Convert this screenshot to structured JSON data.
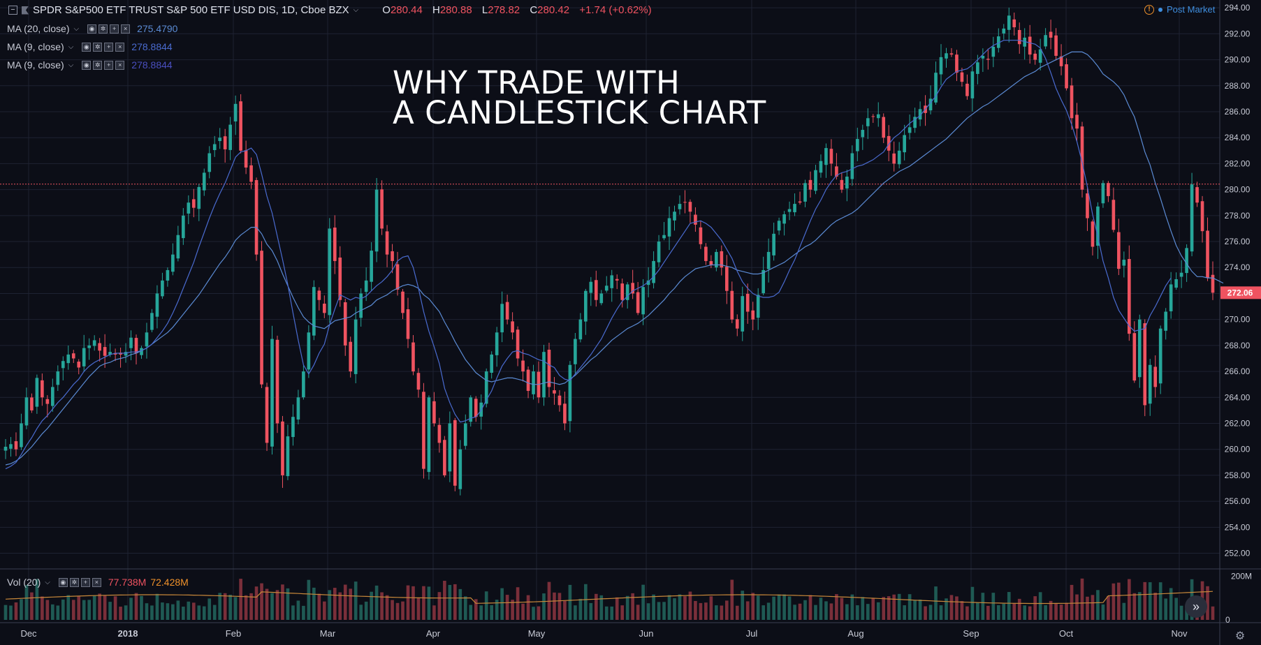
{
  "header": {
    "symbol_title": "SPDR S&P500 ETF TRUST S&P 500 ETF USD DIS, 1D, Cboe BZX",
    "o_label": "O",
    "o_value": "280.44",
    "h_label": "H",
    "h_value": "280.88",
    "l_label": "L",
    "l_value": "278.82",
    "c_label": "C",
    "c_value": "280.42",
    "change": "+1.74 (+0.62%)",
    "post_market": "Post Market",
    "warn_glyph": "!"
  },
  "indicators": [
    {
      "label": "MA (20, close)",
      "value": "275.4790",
      "color": "#5b8bd4"
    },
    {
      "label": "MA (9, close)",
      "value": "278.8844",
      "color": "#4a6bd0"
    },
    {
      "label": "MA (9, close)",
      "value": "278.8844",
      "color": "#4a4fc0"
    }
  ],
  "headline": {
    "line1": "WHY TRADE WITH",
    "line2": "A CANDLESTICK CHART"
  },
  "volume": {
    "label": "Vol (20)",
    "value1": "77.738M",
    "value2": "72.428M",
    "value1_color": "#ef5360",
    "value2_color": "#f0922b"
  },
  "icons": {
    "scroll": "double-chevron-right-icon",
    "settings": "gear-icon"
  },
  "colors": {
    "up": "#26a69a",
    "down": "#ef5360",
    "background": "#0c0e17",
    "grid": "#1e2232",
    "price_line": "#ef5360"
  },
  "chart_data": {
    "type": "candlestick",
    "y_axis_ticks": [
      "294.00",
      "292.00",
      "290.00",
      "288.00",
      "286.00",
      "284.00",
      "282.00",
      "280.00",
      "278.00",
      "276.00",
      "274.00",
      "272.00",
      "270.00",
      "268.00",
      "266.00",
      "264.00",
      "262.00",
      "260.00",
      "258.00",
      "256.00",
      "254.00",
      "252.00"
    ],
    "ylim": [
      250.9,
      294.6
    ],
    "current_price_label": "272.06",
    "current_price": 272.06,
    "last_close_line": 280.42,
    "x_axis_labels": [
      "Dec",
      "2018",
      "Feb",
      "Mar",
      "Apr",
      "May",
      "Jun",
      "Jul",
      "Aug",
      "Sep",
      "Oct",
      "Nov"
    ],
    "volume_axis_ticks": [
      "200M",
      "0"
    ],
    "volume_max": 230,
    "closes": [
      260.2,
      260.4,
      260.0,
      262.0,
      264.0,
      263.0,
      265.5,
      264.0,
      263.5,
      264.8,
      266.0,
      266.8,
      267.3,
      267.0,
      266.3,
      267.8,
      268.0,
      268.4,
      267.6,
      267.2,
      267.5,
      267.3,
      267.3,
      267.5,
      268.6,
      267.4,
      267.8,
      269.0,
      270.5,
      272.0,
      273.0,
      273.8,
      275.0,
      276.5,
      278.0,
      279.0,
      278.6,
      280.2,
      281.3,
      282.8,
      283.5,
      284.0,
      283.1,
      285.0,
      286.6,
      283.0,
      281.7,
      280.6,
      275.0,
      265.0,
      260.5,
      268.5,
      262.0,
      258.0,
      261.0,
      262.5,
      264.0,
      266.0,
      269.0,
      272.5,
      271.5,
      270.5,
      277.0,
      274.5,
      271.5,
      268.0,
      266.0,
      270.0,
      272.0,
      273.0,
      275.3,
      280.0,
      277.0,
      275.0,
      274.5,
      272.3,
      270.5,
      268.5,
      266.0,
      264.6,
      258.5,
      264.0,
      262.0,
      260.5,
      258.0,
      262.0,
      257.2,
      260.0,
      262.0,
      264.0,
      262.5,
      263.6,
      266.0,
      267.3,
      269.0,
      271.2,
      270.0,
      269.0,
      267.0,
      266.0,
      264.5,
      266.0,
      264.0,
      267.5,
      264.8,
      264.3,
      263.4,
      262.0,
      266.5,
      268.5,
      270.0,
      272.2,
      272.9,
      271.5,
      272.0,
      272.6,
      273.4,
      273.0,
      271.5,
      272.7,
      272.0,
      270.5,
      272.5,
      273.0,
      274.5,
      276.0,
      276.5,
      277.8,
      278.3,
      278.9,
      279.0,
      278.3,
      277.3,
      275.8,
      274.5,
      274.2,
      275.2,
      274.0,
      272.2,
      270.0,
      269.3,
      271.8,
      270.6,
      270.0,
      271.9,
      273.8,
      275.2,
      276.6,
      277.6,
      278.1,
      278.5,
      278.9,
      279.0,
      280.5,
      280.0,
      281.5,
      282.2,
      283.2,
      282.0,
      281.0,
      280.0,
      281.0,
      282.8,
      283.9,
      284.6,
      285.5,
      285.6,
      285.8,
      284.0,
      283.0,
      282.0,
      283.0,
      284.2,
      284.8,
      285.6,
      286.2,
      285.9,
      287.0,
      289.0,
      290.2,
      290.5,
      290.4,
      289.0,
      288.3,
      287.2,
      289.1,
      289.8,
      290.3,
      290.0,
      291.0,
      291.8,
      292.4,
      293.4,
      292.5,
      291.2,
      291.7,
      290.4,
      290.0,
      290.8,
      291.9,
      291.7,
      290.3,
      289.5,
      287.8,
      285.5,
      284.7,
      280.0,
      277.8,
      275.6,
      278.7,
      280.5,
      279.5,
      276.9,
      273.9,
      274.6,
      268.9,
      265.3,
      270.0,
      263.4,
      266.5,
      264.8,
      269.3,
      270.6,
      272.7,
      273.1,
      273.6,
      275.5,
      280.4,
      279.0,
      276.8,
      273.2,
      272.06
    ],
    "ma20": [
      258.8,
      258.9,
      259.1,
      259.4,
      259.8,
      260.2,
      260.7,
      261.2,
      261.6,
      262.1,
      262.6,
      263.1,
      263.6,
      264.1,
      264.6,
      265.1,
      265.6,
      266.0,
      266.4,
      266.6,
      266.7,
      266.9,
      267.0,
      267.1,
      267.3,
      267.4,
      267.6,
      267.8,
      268.1,
      268.4,
      268.7,
      269.0,
      269.4,
      269.9,
      270.4,
      270.9,
      271.4,
      271.9,
      272.5,
      273.1,
      273.7,
      274.3,
      274.8,
      275.4,
      276.1,
      276.5,
      276.8,
      277.1,
      277.1,
      276.6,
      275.8,
      275.3,
      274.5,
      273.5,
      272.6,
      271.7,
      270.9,
      270.2,
      269.8,
      269.5,
      269.4,
      269.3,
      269.6,
      269.9,
      270.0,
      270.1,
      270.2,
      270.5,
      270.7,
      270.9,
      271.1,
      271.5,
      271.7,
      271.9,
      272.2,
      272.4,
      272.6,
      272.7,
      272.6,
      272.4,
      271.9,
      271.6,
      271.1,
      270.6,
      269.8,
      269.1,
      268.3,
      267.6,
      266.9,
      266.4,
      265.9,
      265.6,
      265.3,
      265.2,
      265.3,
      265.4,
      265.5,
      265.5,
      265.4,
      265.3,
      265.1,
      265.0,
      265.0,
      265.1,
      265.2,
      265.1,
      265.0,
      265.1,
      265.4,
      265.7,
      266.1,
      266.5,
      266.9,
      267.2,
      267.6,
      268.0,
      268.4,
      268.7,
      269.0,
      269.3,
      269.5,
      269.7,
      270.0,
      270.3,
      270.7,
      271.1,
      271.5,
      272.0,
      272.4,
      272.9,
      273.3,
      273.6,
      273.9,
      274.0,
      274.1,
      274.2,
      274.2,
      274.2,
      274.1,
      274.0,
      273.8,
      273.7,
      273.6,
      273.5,
      273.5,
      273.6,
      273.8,
      274.0,
      274.2,
      274.4,
      274.7,
      275.0,
      275.3,
      275.6,
      275.8,
      276.1,
      276.5,
      276.9,
      277.3,
      277.6,
      277.8,
      278.0,
      278.2,
      278.5,
      278.9,
      279.3,
      279.7,
      280.1,
      280.5,
      280.8,
      281.1,
      281.4,
      281.6,
      281.8,
      282.1,
      282.4,
      282.7,
      283.0,
      283.3,
      283.6,
      283.9,
      284.3,
      284.7,
      285.1,
      285.5,
      285.8,
      286.1,
      286.4,
      286.6,
      286.9,
      287.2,
      287.5,
      287.8,
      288.1,
      288.4,
      288.7,
      288.9,
      289.1,
      289.4,
      289.6,
      289.8,
      290.0,
      290.2,
      290.4,
      290.6,
      290.6,
      290.6,
      290.4,
      290.0,
      289.5,
      288.9,
      288.6,
      288.3,
      287.9,
      287.3,
      286.4,
      285.6,
      284.3,
      282.9,
      281.9,
      280.5,
      279.3,
      278.0,
      276.8,
      275.7,
      274.9,
      274.3,
      273.7,
      273.3,
      273.3,
      273.2,
      273.2,
      273.0,
      272.8
    ],
    "ma9": [
      258.5,
      258.7,
      259.0,
      259.6,
      260.3,
      260.9,
      261.6,
      262.2,
      262.6,
      263.1,
      263.6,
      264.0,
      264.5,
      265.0,
      265.4,
      266.0,
      266.4,
      266.7,
      266.9,
      267.1,
      267.3,
      267.4,
      267.4,
      267.4,
      267.5,
      267.5,
      267.6,
      267.8,
      268.1,
      268.6,
      269.1,
      269.7,
      270.5,
      271.4,
      272.4,
      273.4,
      274.4,
      275.6,
      276.7,
      277.8,
      278.8,
      279.7,
      280.5,
      281.5,
      282.5,
      282.9,
      283.0,
      283.2,
      282.7,
      281.2,
      279.5,
      278.2,
      276.4,
      274.6,
      272.7,
      270.5,
      268.4,
      266.5,
      265.8,
      266.5,
      267.4,
      268.1,
      269.6,
      270.8,
      271.9,
      271.7,
      271.5,
      271.7,
      271.6,
      271.8,
      272.2,
      272.6,
      272.9,
      273.3,
      273.8,
      274.5,
      274.8,
      274.9,
      274.0,
      272.4,
      270.6,
      269.1,
      267.9,
      266.6,
      264.7,
      263.6,
      262.7,
      262.1,
      262.2,
      262.4,
      262.5,
      263.0,
      263.8,
      264.5,
      265.5,
      266.4,
      267.0,
      267.5,
      267.6,
      267.4,
      267.3,
      267.1,
      266.9,
      266.8,
      266.5,
      266.3,
      265.7,
      265.4,
      265.3,
      265.8,
      266.3,
      266.8,
      267.3,
      267.9,
      268.5,
      269.3,
      270.1,
      270.8,
      271.4,
      271.8,
      272.2,
      272.4,
      272.6,
      272.9,
      273.3,
      273.8,
      274.4,
      275.0,
      275.6,
      276.2,
      276.8,
      277.4,
      277.5,
      277.6,
      277.4,
      277.1,
      276.6,
      276.1,
      275.4,
      274.7,
      273.7,
      272.9,
      272.4,
      272.0,
      271.8,
      271.7,
      271.7,
      271.8,
      272.1,
      272.9,
      273.8,
      274.6,
      275.6,
      276.6,
      277.6,
      278.5,
      279.2,
      280.0,
      280.6,
      281.1,
      281.3,
      281.4,
      281.6,
      281.8,
      281.9,
      282.1,
      282.3,
      282.6,
      282.9,
      283.5,
      284.0,
      284.3,
      284.7,
      285.1,
      285.4,
      285.7,
      286.2,
      286.7,
      287.2,
      287.9,
      288.5,
      288.8,
      289.1,
      289.2,
      289.3,
      289.6,
      290.0,
      290.4,
      290.8,
      291.1,
      291.3,
      291.5,
      291.5,
      291.5,
      291.5,
      291.4,
      291.3,
      291.2,
      290.9,
      290.1,
      289.0,
      287.8,
      286.9,
      286.1,
      285.0,
      283.7,
      282.1,
      280.2,
      278.1,
      276.4,
      274.5,
      273.2,
      271.7,
      270.7,
      270.1,
      269.5,
      269.1,
      269.2,
      269.3,
      270.3,
      271.0,
      271.8,
      272.6,
      273.2
    ]
  }
}
